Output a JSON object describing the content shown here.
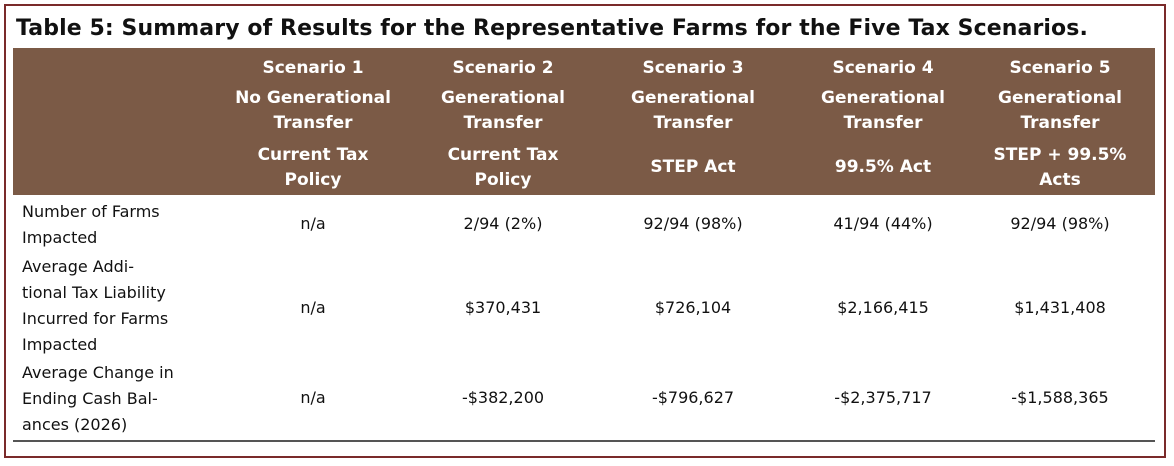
{
  "title": "Table 5: Summary of Results for the Representative Farms for the Five Tax Scenarios.",
  "columns": [
    {
      "scenario": "Scenario 1",
      "transfer": "No Generational\nTransfer",
      "policy": "Current Tax\nPolicy"
    },
    {
      "scenario": "Scenario 2",
      "transfer": "Generational\nTransfer",
      "policy": "Current Tax\nPolicy"
    },
    {
      "scenario": "Scenario 3",
      "transfer": "Generational\nTransfer",
      "policy": "STEP Act"
    },
    {
      "scenario": "Scenario 4",
      "transfer": "Generational\nTransfer",
      "policy": "99.5% Act"
    },
    {
      "scenario": "Scenario 5",
      "transfer": "Generational\nTransfer",
      "policy": "STEP + 99.5%\nActs"
    }
  ],
  "rows": [
    {
      "label": "Number of Farms\nImpacted",
      "values": [
        "n/a",
        "2/94 (2%)",
        "92/94 (98%)",
        "41/94 (44%)",
        "92/94 (98%)"
      ]
    },
    {
      "label": "Average Addi-\ntional Tax Liability\nIncurred for Farms\nImpacted",
      "values": [
        "n/a",
        "$370,431",
        "$726,104",
        "$2,166,415",
        "$1,431,408"
      ]
    },
    {
      "label": "Average Change in\nEnding Cash Bal-\nances (2026)",
      "values": [
        "n/a",
        "-$382,200",
        "-$796,627",
        "-$2,375,717",
        "-$1,588,365"
      ]
    }
  ],
  "colors": {
    "header_bg": "#7b5a46",
    "header_text": "#ffffff",
    "frame": "#7a2a2a"
  }
}
